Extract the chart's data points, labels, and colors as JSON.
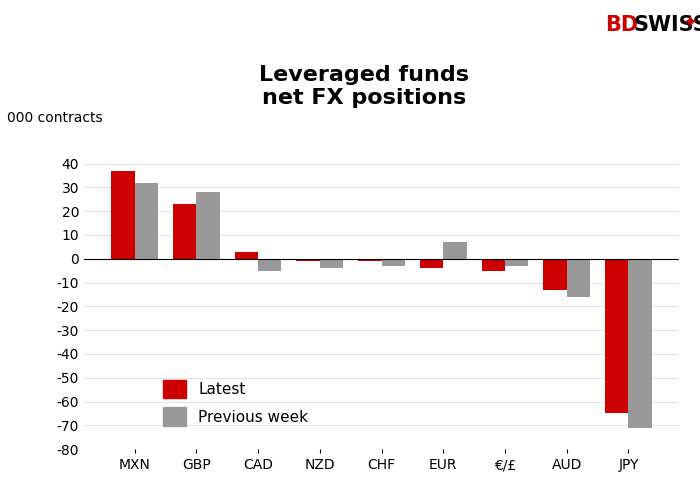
{
  "categories": [
    "MXN",
    "GBP",
    "CAD",
    "NZD",
    "CHF",
    "EUR",
    "€/£",
    "AUD",
    "JPY"
  ],
  "latest": [
    37,
    23,
    3,
    -1,
    -1,
    -4,
    -5,
    -13,
    -65
  ],
  "previous": [
    32,
    28,
    -5,
    -4,
    -3,
    7,
    -3,
    -16,
    -71
  ],
  "latest_color": "#cc0000",
  "previous_color": "#999999",
  "title": "Leveraged funds\nnet FX positions",
  "ylabel": "000 contracts",
  "ylim": [
    -80,
    50
  ],
  "yticks": [
    -80,
    -70,
    -60,
    -50,
    -40,
    -30,
    -20,
    -10,
    0,
    10,
    20,
    30,
    40
  ],
  "legend_latest": "Latest",
  "legend_previous": "Previous week",
  "bar_width": 0.38,
  "title_fontsize": 16,
  "axis_fontsize": 10,
  "tick_fontsize": 10,
  "background_color": "#ffffff",
  "bd_color": "#cc0000",
  "swiss_color": "#000000"
}
